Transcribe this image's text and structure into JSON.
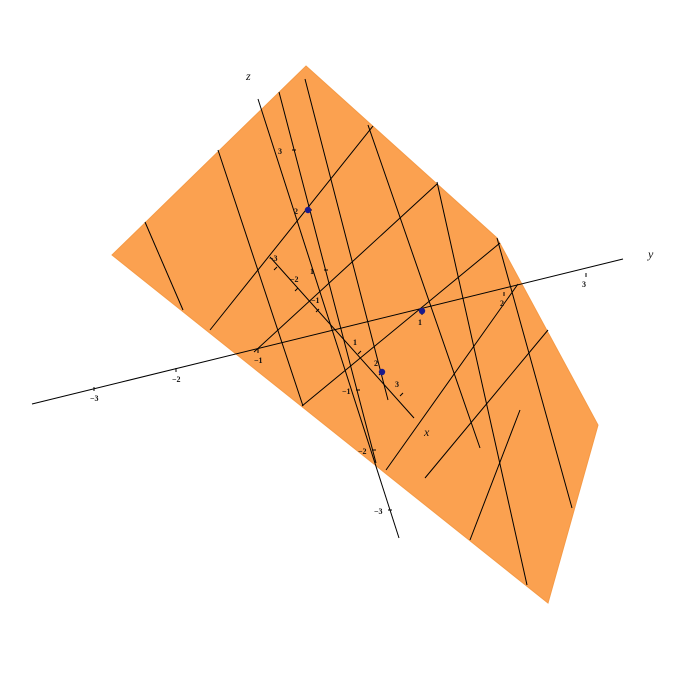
{
  "plane": {
    "fill": "#fba150",
    "edge": "#f59a46"
  },
  "point_color": "#1a1a8c",
  "axes": {
    "x": {
      "label": "x",
      "ticks": [
        "-3",
        "-2",
        "-1",
        "1",
        "2",
        "3"
      ]
    },
    "y": {
      "label": "y",
      "ticks": [
        "-3",
        "-2",
        "-1",
        "1",
        "2",
        "3"
      ]
    },
    "z": {
      "label": "z",
      "ticks": [
        "-3",
        "-2",
        "-1",
        "1",
        "2",
        "3"
      ]
    }
  },
  "points": [
    {
      "axis": "x",
      "value": 2
    },
    {
      "axis": "y",
      "value": 1
    },
    {
      "axis": "z",
      "value": 2
    }
  ]
}
